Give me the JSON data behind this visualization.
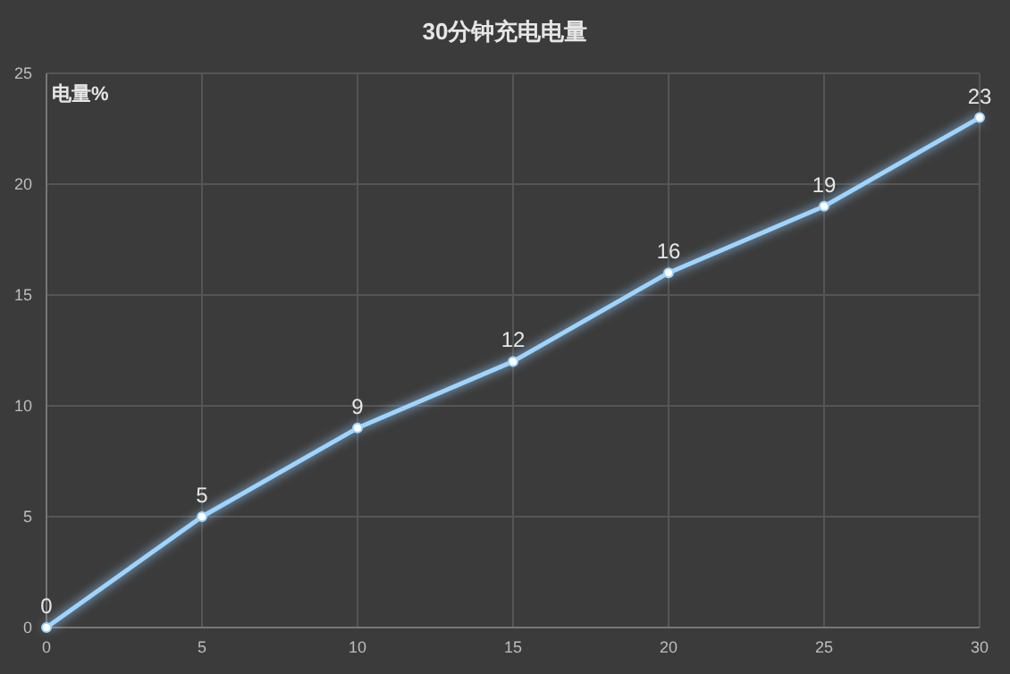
{
  "chart_data": {
    "type": "line",
    "title": "30分钟充电电量",
    "ylabel": "电量%",
    "x": [
      0,
      5,
      10,
      15,
      20,
      25,
      30
    ],
    "values": [
      0,
      5,
      9,
      12,
      16,
      19,
      23
    ],
    "color": "#9fd4ff",
    "xlim": [
      0,
      30
    ],
    "ylim": [
      0,
      25
    ],
    "xticks": [
      0,
      5,
      10,
      15,
      20,
      25,
      30
    ],
    "yticks": [
      0,
      5,
      10,
      15,
      20,
      25
    ],
    "grid": true,
    "data_labels": true,
    "marker": "circle"
  }
}
